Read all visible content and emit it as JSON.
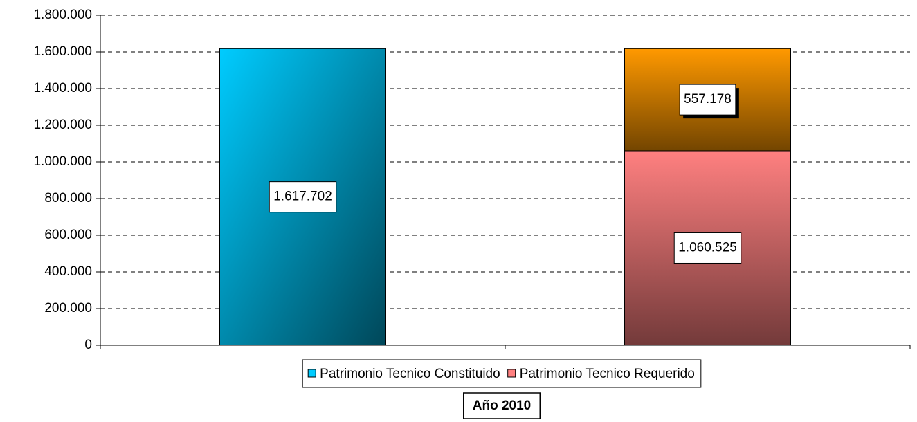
{
  "chart_data": {
    "type": "stacked_bar",
    "categories": [
      null,
      null
    ],
    "series": [
      {
        "name": "Patrimonio Tecnico Constituido",
        "color": "#00ccff",
        "values": [
          1617702,
          null
        ],
        "value_labels": [
          "1.617.702",
          null
        ]
      },
      {
        "name": "Patrimonio Tecnico Requerido",
        "color": "#ff8080",
        "values": [
          null,
          1060525
        ],
        "value_labels": [
          null,
          "1.060.525"
        ]
      },
      {
        "color": "#ff9900",
        "values": [
          null,
          557178
        ],
        "value_labels": [
          null,
          "557.178"
        ]
      }
    ],
    "x_label": "Año 2010",
    "ylim": [
      0,
      1800000
    ],
    "yticks": [
      0,
      {
        "value": 200000,
        "label": "200.000"
      },
      {
        "value": 400000,
        "label": "400.000"
      },
      {
        "value": 600000,
        "label": "600.000"
      },
      {
        "value": 800000,
        "label": "800.000"
      },
      {
        "value": 1000000,
        "label": "1.000.000"
      },
      {
        "value": 1200000,
        "label": "1.200.000"
      },
      {
        "value": 1400000,
        "label": "1.400.000"
      },
      {
        "value": 1600000,
        "label": "1.600.000"
      },
      {
        "value": 1800000,
        "label": "1.800.000"
      }
    ],
    "grid": true,
    "legend": "bottom"
  }
}
